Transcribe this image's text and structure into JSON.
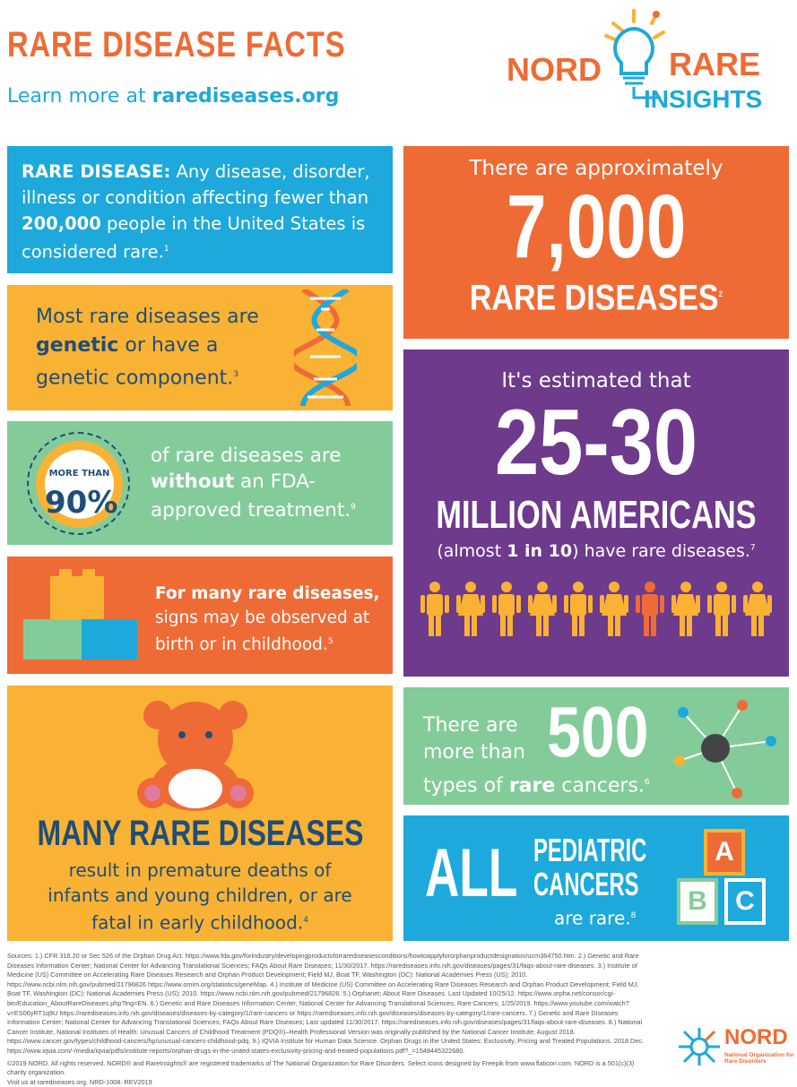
{
  "header": {
    "title": "RARE DISEASE FACTS",
    "learn_prefix": "Learn more at ",
    "learn_link": "rarediseases.org"
  },
  "logo": {
    "nord": "NORD",
    "rare": "RARE",
    "insights": "INSIGHTS",
    "reg": "®",
    "tm": "TM"
  },
  "colors": {
    "orange": "#ef6b35",
    "blue": "#1da9dc",
    "yellow": "#f9b233",
    "green": "#83cc9a",
    "purple": "#6e3a8c",
    "navy": "#1f4e79"
  },
  "facts": {
    "definition": {
      "label": "RARE DISEASE:",
      "text1": " Any disease, disorder, illness or condition affecting fewer than ",
      "number": "200,000",
      "text2": " people in the United States is considered rare.",
      "ref": "1"
    },
    "genetic": {
      "text1": "Most rare diseases are ",
      "bold": "genetic",
      "text2": " or have a genetic component.",
      "ref": "3",
      "icon": "dna-icon"
    },
    "fda": {
      "badge_top": "MORE THAN",
      "badge_value": "90%",
      "text1": "of rare diseases are ",
      "bold": "without",
      "text2": " an FDA-approved treatment.",
      "ref": "9"
    },
    "birth": {
      "bold": "For many rare diseases,",
      "text": " signs may be observed at birth or in childhood.",
      "ref": "5",
      "icon": "toy-blocks-icon"
    },
    "infants": {
      "headline": "MANY RARE DISEASES",
      "text": "result in premature deaths of infants and young children, or are fatal in early childhood.",
      "ref": "4",
      "icon": "teddy-bear-icon"
    },
    "count": {
      "intro": "There are approximately",
      "number": "7,000",
      "label": "RARE DISEASES",
      "ref": "2"
    },
    "americans": {
      "intro": "It's estimated that",
      "number": "25-30",
      "label": "MILLION AMERICANS",
      "text1": "(almost ",
      "bold": "1 in 10",
      "text2": ") have rare diseases.",
      "ref": "7",
      "icon": "people-icon"
    },
    "cancers": {
      "text1": "There are more than",
      "number": "500",
      "text2": "types of ",
      "bold": "rare",
      "text3": " cancers.",
      "ref": "6",
      "icon": "molecule-icon"
    },
    "pediatric": {
      "all": "ALL",
      "line1": "PEDIATRIC",
      "line2": "CANCERS",
      "line3": "are rare.",
      "ref": "8",
      "blocks": [
        "A",
        "B",
        "C"
      ]
    }
  },
  "footer": {
    "sources": "Sources: 1.) CFR 316.20 or Sec 526 of the Orphan Drug Act. https://www.fda.gov/forindustry/developingproductsforrarediseasesconditions/howtoapplyfororphanproductdesignation/ucm364750.htm. 2.) Genetic and Rare Diseases Information Center; National Center for Advancing Translational Sciences; FAQs About Rare Diseases; 11/30/2017. https://rarediseases.info.nih.gov/diseases/pages/31/faqs-about-rare-diseases. 3.) Institute of Medicine (US) Committee on Accelerating Rare Diseases Research and Orphan Product Development; Field MJ, Boat TF, Washington (DC): National Academies Press (US); 2010. https://www.ncbi.nlm.nih.gov/pubmed/21796826 https://www.omim.org/statistics/geneMap. 4.) Institute of Medicine (US) Committee on Accelerating Rare Diseases Research and Orphan Product Development; Field MJ, Boat TF, Washington (DC): National Academies Press (US); 2010. https://www.ncbi.nlm.nih.gov/pubmed/21796826. 5.) Orphanet; About Rare Diseases. Last Updated 10/25/12. https://www.orpha.net/consor/cgi-bin/Education_AboutRareDiseases.php?lng=EN. 6.) Genetic and Rare Diseases Information Center; National Center for Advancing Translational Sciences; Rare Cancers; 1/25/2019. https://www.youtube.com/watch?v=ES06yRT1q9U https://rarediseases.info.nih.gov/diseases/diseases-by-category/1/rare-cancers or https://rarediseases.info.nih.gov/diseases/diseases-by-category/1/rare-cancers. 7.) Genetic and Rare Diseases Information Center; National Center for Advancing Translational Sciences; FAQs About Rare Diseases; Last updated 11/30/2017. https://rarediseases.info.nih.gov/diseases/pages/31/faqs-about-rare-diseases. 8.) National Cancer Institute, National Institutes of Health: Unusual Cancers of Childhood Treatment (PDQ®)–Health Professional Version was originally published by the National Cancer Institute; August 2018. https://www.cancer.gov/types/childhood-cancers/hp/unusual-cancers-childhood-pdq. 9.) IQVIA Institute for Human Data Science. Orphan Drugs in the United States: Exclusivity, Pricing and Treated Populations. 2018 Dec. https://www.iqvia.com/-/media/iqvia/pdfs/institute-reports/orphan-drugs-in-the-united-states-exclusivity-pricing-and-treated-populations.pdf?_=1548445322680.",
    "copyright": "©2019 NORD. All rights reserved. NORD® and RareInsights® are registered trademarks of The National Organization for Rare Disorders. Select icons designed by Freepik from www.flaticon.com. NORD is a 501(c)(3) charity organization.",
    "visit": "Visit us at rarediseases.org. NRD-1008. REV2019",
    "nord_logo": "NORD",
    "nord_sub": "National Organization for Rare Disorders"
  }
}
